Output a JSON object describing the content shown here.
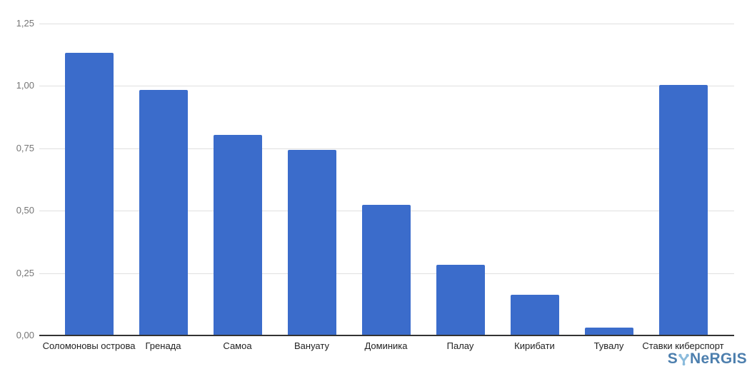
{
  "chart_data": {
    "type": "bar",
    "title": "",
    "xlabel": "",
    "ylabel": "",
    "categories": [
      "Соломоновы острова",
      "Гренада",
      "Самоа",
      "Вануату",
      "Доминика",
      "Палау",
      "Кирибати",
      "Тувалу",
      "Ставки киберспорт"
    ],
    "values": [
      1.13,
      0.98,
      0.8,
      0.74,
      0.52,
      0.28,
      0.16,
      0.03,
      1.0
    ],
    "ylim": [
      0,
      1.25
    ],
    "yticks": [
      {
        "value": 0.0,
        "label": "0,00"
      },
      {
        "value": 0.25,
        "label": "0,25"
      },
      {
        "value": 0.5,
        "label": "0,50"
      },
      {
        "value": 0.75,
        "label": "0,75"
      },
      {
        "value": 1.0,
        "label": "1,00"
      },
      {
        "value": 1.25,
        "label": "1,25"
      }
    ],
    "grid": true,
    "legend": "none",
    "bar_color": "#3b6ccb",
    "gridline_color": "#e0e0e0",
    "baseline_color": "#333333",
    "ytick_color": "#757575",
    "xtick_color": "#222222"
  },
  "logo": {
    "text": "SYNERGIS",
    "part_before_y": "S",
    "part_after_y": "NeRGIS",
    "letter_color": "#4d7fae",
    "y_color": "#8abbdc"
  }
}
